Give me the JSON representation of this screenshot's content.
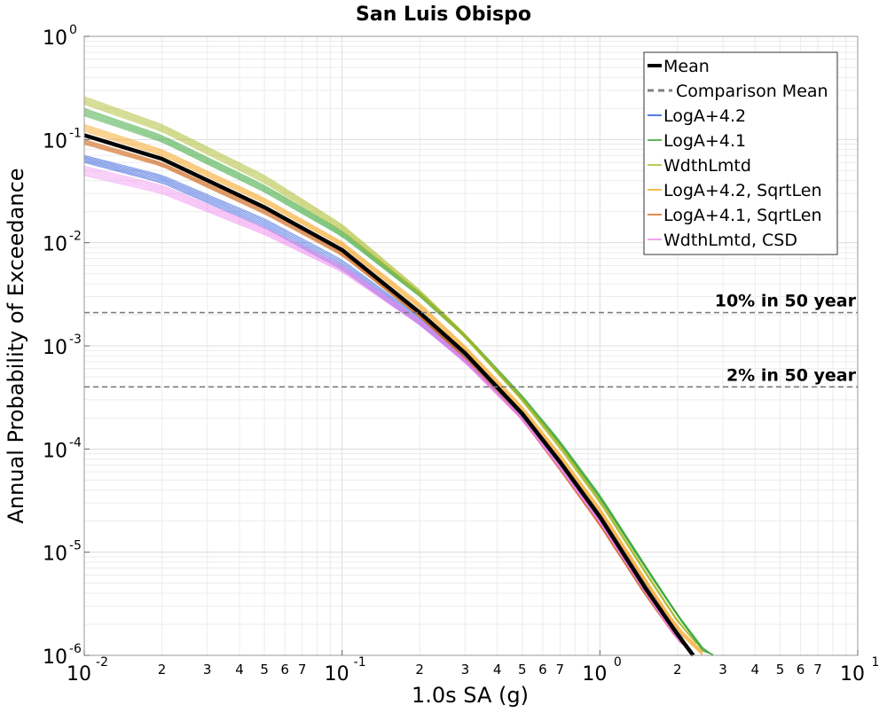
{
  "chart_data": {
    "type": "line",
    "title": "San Luis Obispo",
    "xlabel": "1.0s SA (g)",
    "ylabel": "Annual Probability of Exceedance",
    "x_scale": "log",
    "y_scale": "log",
    "xlim": [
      0.01,
      10
    ],
    "ylim": [
      1e-06,
      1
    ],
    "grid": true,
    "legend_position": "top-right",
    "x_major_ticks": [
      {
        "base": "10",
        "exp": "-2",
        "value": 0.01
      },
      {
        "base": "10",
        "exp": "-1",
        "value": 0.1
      },
      {
        "base": "10",
        "exp": "0",
        "value": 1
      },
      {
        "base": "10",
        "exp": "1",
        "value": 10
      }
    ],
    "x_minor_tick_labels": [
      "2",
      "3",
      "4",
      "5",
      "6",
      "7"
    ],
    "y_major_ticks": [
      {
        "base": "10",
        "exp": "0",
        "value": 1
      },
      {
        "base": "10",
        "exp": "-1",
        "value": 0.1
      },
      {
        "base": "10",
        "exp": "-2",
        "value": 0.01
      },
      {
        "base": "10",
        "exp": "-3",
        "value": 0.001
      },
      {
        "base": "10",
        "exp": "-4",
        "value": 0.0001
      },
      {
        "base": "10",
        "exp": "-5",
        "value": 1e-05
      },
      {
        "base": "10",
        "exp": "-6",
        "value": 1e-06
      }
    ],
    "reference_lines": [
      {
        "label": "10% in 50 year",
        "y": 0.0021
      },
      {
        "label": "2% in 50 year",
        "y": 0.0004
      }
    ],
    "legend": [
      {
        "label": "Mean",
        "color": "#000000",
        "style": "solid-thick"
      },
      {
        "label": "Comparison Mean",
        "color": "#808080",
        "style": "dashed"
      },
      {
        "label": "LogA+4.2",
        "color": "#1f4fd8",
        "style": "solid"
      },
      {
        "label": "LogA+4.1",
        "color": "#2ca02c",
        "style": "solid"
      },
      {
        "label": "WdthLmtd",
        "color": "#a8b820",
        "style": "solid"
      },
      {
        "label": "LogA+4.2, SqrtLen",
        "color": "#f5a623",
        "style": "solid"
      },
      {
        "label": "LogA+4.1, SqrtLen",
        "color": "#d2691e",
        "style": "solid"
      },
      {
        "label": "WdthLmtd, CSD",
        "color": "#ee82ee",
        "style": "solid"
      }
    ],
    "mean_curve": {
      "x": [
        0.01,
        0.02,
        0.05,
        0.1,
        0.2,
        0.3,
        0.5,
        0.7,
        1.0,
        1.5,
        2.0,
        2.3
      ],
      "y": [
        0.11,
        0.065,
        0.022,
        0.0085,
        0.0021,
        0.00085,
        0.00022,
        7.5e-05,
        2.2e-05,
        4.5e-06,
        1.6e-06,
        1e-06
      ]
    },
    "series": [
      {
        "name": "LogA+4.2",
        "color": "#1f4fd8",
        "bands": [
          {
            "x": [
              0.01,
              0.02,
              0.05,
              0.1,
              0.2,
              0.3,
              0.5,
              0.7,
              1.0,
              1.5,
              2.0,
              2.4
            ],
            "y": [
              0.07,
              0.045,
              0.017,
              0.0068,
              0.0019,
              0.00082,
              0.00023,
              8e-05,
              2.4e-05,
              5e-06,
              1.7e-06,
              1e-06
            ]
          },
          {
            "x": [
              0.01,
              0.02,
              0.05,
              0.1,
              0.2,
              0.3,
              0.5,
              0.7,
              1.0,
              1.5,
              2.0,
              2.3
            ],
            "y": [
              0.06,
              0.038,
              0.014,
              0.0055,
              0.0016,
              0.0007,
              0.0002,
              7e-05,
              2e-05,
              4.2e-06,
              1.5e-06,
              1e-06
            ]
          }
        ]
      },
      {
        "name": "LogA+4.1",
        "color": "#2ca02c",
        "bands": [
          {
            "x": [
              0.01,
              0.02,
              0.05,
              0.1,
              0.2,
              0.3,
              0.5,
              0.7,
              1.0,
              1.5,
              2.0,
              2.5,
              2.75
            ],
            "y": [
              0.2,
              0.11,
              0.036,
              0.013,
              0.0033,
              0.0013,
              0.00033,
              0.00012,
              3.6e-05,
              7.5e-06,
              2.5e-06,
              1.2e-06,
              1e-06
            ]
          },
          {
            "x": [
              0.01,
              0.02,
              0.05,
              0.1,
              0.2,
              0.3,
              0.5,
              0.7,
              1.0,
              1.5,
              2.0,
              2.5,
              2.8
            ],
            "y": [
              0.17,
              0.095,
              0.031,
              0.0115,
              0.003,
              0.0012,
              0.0003,
              0.00011,
              3.3e-05,
              7e-06,
              2.4e-06,
              1.1e-06,
              1e-06
            ]
          }
        ]
      },
      {
        "name": "WdthLmtd",
        "color": "#a8b820",
        "bands": [
          {
            "x": [
              0.01,
              0.02,
              0.05,
              0.1,
              0.2,
              0.3,
              0.5,
              0.7,
              1.0,
              1.5,
              2.0,
              2.5,
              2.7
            ],
            "y": [
              0.26,
              0.14,
              0.045,
              0.015,
              0.0035,
              0.0013,
              0.00031,
              0.00011,
              3.2e-05,
              6.6e-06,
              2.2e-06,
              1.1e-06,
              1e-06
            ]
          },
          {
            "x": [
              0.01,
              0.02,
              0.05,
              0.1,
              0.2,
              0.3,
              0.5,
              0.7,
              1.0,
              1.5,
              2.0,
              2.6
            ],
            "y": [
              0.22,
              0.12,
              0.038,
              0.013,
              0.0031,
              0.0012,
              0.00029,
              0.0001,
              3e-05,
              6.2e-06,
              2.1e-06,
              1e-06
            ]
          }
        ]
      },
      {
        "name": "LogA+4.2, SqrtLen",
        "color": "#f5a623",
        "bands": [
          {
            "x": [
              0.01,
              0.02,
              0.05,
              0.1,
              0.2,
              0.3,
              0.5,
              0.7,
              1.0,
              1.5,
              2.0,
              2.6
            ],
            "y": [
              0.14,
              0.08,
              0.027,
              0.0102,
              0.0026,
              0.001,
              0.00026,
              9e-05,
              2.7e-05,
              5.6e-06,
              1.9e-06,
              1e-06
            ]
          },
          {
            "x": [
              0.01,
              0.02,
              0.05,
              0.1,
              0.2,
              0.3,
              0.5,
              0.7,
              1.0,
              1.5,
              2.0,
              2.5
            ],
            "y": [
              0.12,
              0.07,
              0.024,
              0.0092,
              0.0023,
              0.0009,
              0.00023,
              8e-05,
              2.4e-05,
              5e-06,
              1.7e-06,
              1e-06
            ]
          }
        ]
      },
      {
        "name": "LogA+4.1, SqrtLen",
        "color": "#d2691e",
        "bands": [
          {
            "x": [
              0.01,
              0.02,
              0.05,
              0.1,
              0.2,
              0.3,
              0.5,
              0.7,
              1.0,
              1.5,
              2.0,
              2.35
            ],
            "y": [
              0.09,
              0.055,
              0.019,
              0.0075,
              0.0019,
              0.00075,
              0.00019,
              6.2e-05,
              1.8e-05,
              3.8e-06,
              1.4e-06,
              1e-06
            ]
          },
          {
            "x": [
              0.01,
              0.02,
              0.05,
              0.1,
              0.2,
              0.3,
              0.5,
              0.7,
              1.0,
              1.5,
              2.0,
              2.3
            ],
            "y": [
              0.1,
              0.06,
              0.021,
              0.0082,
              0.002,
              0.00078,
              0.0002,
              6.6e-05,
              1.9e-05,
              4e-06,
              1.5e-06,
              1e-06
            ]
          }
        ]
      },
      {
        "name": "WdthLmtd, CSD",
        "color": "#ee82ee",
        "bands": [
          {
            "x": [
              0.01,
              0.02,
              0.05,
              0.1,
              0.2,
              0.3,
              0.5,
              0.7,
              1.0,
              1.5,
              2.0,
              2.25
            ],
            "y": [
              0.045,
              0.03,
              0.012,
              0.0052,
              0.0016,
              0.00068,
              0.00019,
              6.4e-05,
              1.9e-05,
              4e-06,
              1.4e-06,
              1e-06
            ]
          },
          {
            "x": [
              0.01,
              0.02,
              0.05,
              0.1,
              0.2,
              0.3,
              0.5,
              0.7,
              1.0,
              1.5,
              2.0,
              2.3
            ],
            "y": [
              0.055,
              0.036,
              0.014,
              0.006,
              0.0018,
              0.00075,
              0.0002,
              6.8e-05,
              2e-05,
              4.2e-06,
              1.5e-06,
              1e-06
            ]
          }
        ]
      }
    ]
  }
}
